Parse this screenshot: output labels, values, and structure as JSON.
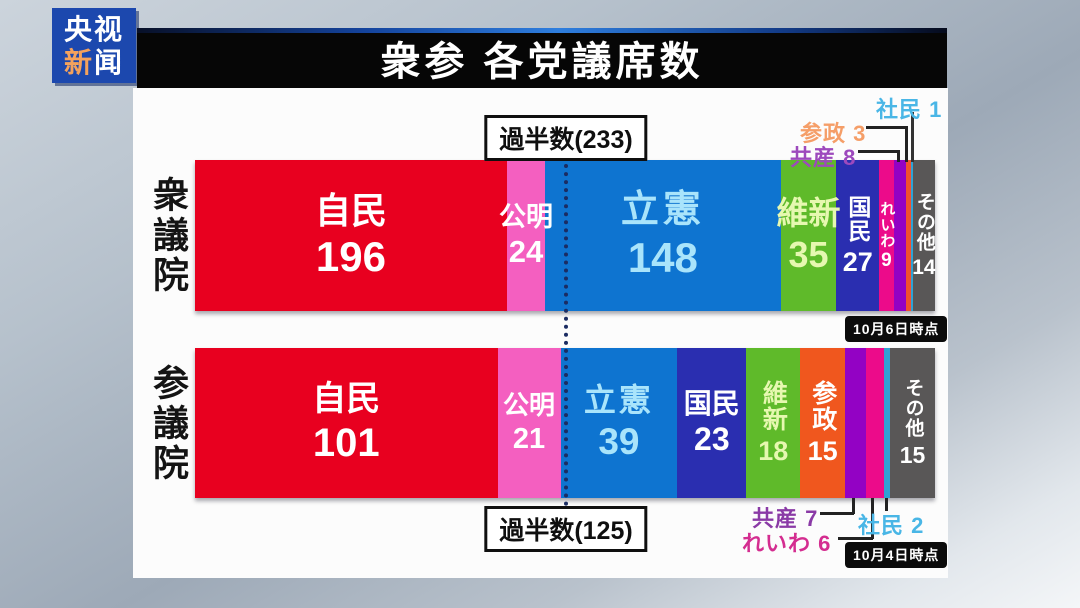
{
  "logo": {
    "top": "央视",
    "bottom_orange": "新",
    "bottom_white": "闻"
  },
  "header": {
    "title": "衆参 各党議席数"
  },
  "chart_data": {
    "type": "bar",
    "orientation": "horizontal-stacked",
    "title": "衆参 各党議席数",
    "bars": [
      {
        "house": "衆議院",
        "total_seats": 465,
        "majority_value": 233,
        "majority_label": "過半数(233)",
        "as_of": "10月6日時点",
        "segments": [
          {
            "party": "自民",
            "seats": 196,
            "color": "#e8001f",
            "text_color": "#ffffff"
          },
          {
            "party": "公明",
            "seats": 24,
            "color": "#f45fc0",
            "text_color": "#ffffff"
          },
          {
            "party": "立憲",
            "seats": 148,
            "color": "#0e74d0",
            "text_color": "#a9e4fb"
          },
          {
            "party": "維新",
            "seats": 35,
            "color": "#5fba2a",
            "text_color": "#e6f8b0"
          },
          {
            "party": "国民",
            "seats": 27,
            "color": "#2a2eb0",
            "text_color": "#ffffff"
          },
          {
            "party": "れいわ",
            "seats": 9,
            "color": "#ec0b8a",
            "text_color": "#ffffff"
          },
          {
            "party": "共産",
            "seats": 8,
            "color": "#9302c4",
            "text_color": "#ffffff"
          },
          {
            "party": "参政",
            "seats": 3,
            "color": "#f0512e",
            "text_color": "#ffffff"
          },
          {
            "party": "社民",
            "seats": 1,
            "color": "#2fa2d4",
            "text_color": "#ffffff"
          },
          {
            "party": "その他",
            "seats": 14,
            "color": "#595757",
            "text_color": "#ffffff"
          }
        ],
        "callouts": [
          {
            "party": "社民",
            "label": "社民 1",
            "color": "#49b6e6"
          },
          {
            "party": "参政",
            "label": "参政 3",
            "color": "#f59e68"
          },
          {
            "party": "共産",
            "label": "共産 8",
            "color": "#9d49bd"
          }
        ]
      },
      {
        "house": "参議院",
        "total_seats": 247,
        "majority_value": 125,
        "majority_label": "過半数(125)",
        "as_of": "10月4日時点",
        "segments": [
          {
            "party": "自民",
            "seats": 101,
            "color": "#e8001f",
            "text_color": "#ffffff"
          },
          {
            "party": "公明",
            "seats": 21,
            "color": "#f45fc0",
            "text_color": "#ffffff"
          },
          {
            "party": "立憲",
            "seats": 39,
            "color": "#0e74d0",
            "text_color": "#a9e4fb"
          },
          {
            "party": "国民",
            "seats": 23,
            "color": "#2a2eb0",
            "text_color": "#ffffff"
          },
          {
            "party": "維新",
            "seats": 18,
            "color": "#5fba2a",
            "text_color": "#e6f8b0"
          },
          {
            "party": "参政",
            "seats": 15,
            "color": "#f0571e",
            "text_color": "#ffffff"
          },
          {
            "party": "共産",
            "seats": 7,
            "color": "#9302c4",
            "text_color": "#ffffff"
          },
          {
            "party": "れいわ",
            "seats": 6,
            "color": "#ec0b8a",
            "text_color": "#ffffff"
          },
          {
            "party": "社民",
            "seats": 2,
            "color": "#2fa2d4",
            "text_color": "#ffffff"
          },
          {
            "party": "その他",
            "seats": 15,
            "color": "#595757",
            "text_color": "#ffffff"
          }
        ],
        "callouts": [
          {
            "party": "共産",
            "label": "共産 7",
            "color": "#8a3aa6"
          },
          {
            "party": "れいわ",
            "label": "れいわ 6",
            "color": "#d42d90"
          },
          {
            "party": "社民",
            "label": "社民 2",
            "color": "#49b6e6"
          }
        ]
      }
    ]
  }
}
